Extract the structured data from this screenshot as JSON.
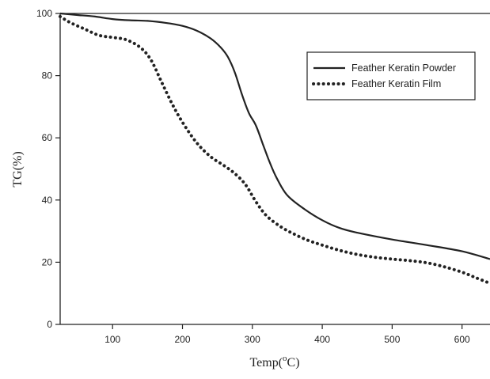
{
  "chart_data": {
    "type": "line",
    "xlabel": "Temp(oC)",
    "xlabel_parts": {
      "pre": "Temp(",
      "sup": "o",
      "post": "C)"
    },
    "ylabel": "TG(%)",
    "xlim": [
      25,
      640
    ],
    "ylim": [
      0,
      100
    ],
    "xticks": [
      100,
      200,
      300,
      400,
      500,
      600
    ],
    "yticks": [
      0,
      20,
      40,
      60,
      80,
      100
    ],
    "grid": false,
    "legend_position": "top-right",
    "series": [
      {
        "name": "Feather Keratin Powder",
        "style": "solid",
        "color": "#222222",
        "x": [
          25,
          50,
          75,
          100,
          125,
          150,
          175,
          200,
          220,
          240,
          255,
          265,
          275,
          285,
          295,
          305,
          315,
          325,
          335,
          350,
          375,
          400,
          425,
          450,
          500,
          550,
          600,
          640
        ],
        "y": [
          100,
          99.5,
          99,
          98.2,
          97.8,
          97.6,
          97,
          96,
          94.5,
          92,
          89,
          86,
          81,
          74,
          68,
          64,
          58,
          52,
          47,
          41.5,
          37,
          33.5,
          31,
          29.5,
          27.3,
          25.5,
          23.5,
          21
        ]
      },
      {
        "name": "Feather Keratin Film",
        "style": "dotted",
        "color": "#222222",
        "x": [
          25,
          40,
          60,
          80,
          100,
          120,
          140,
          155,
          170,
          185,
          200,
          220,
          240,
          260,
          275,
          290,
          305,
          320,
          340,
          360,
          380,
          400,
          425,
          450,
          475,
          500,
          525,
          550,
          575,
          600,
          620,
          640
        ],
        "y": [
          99,
          97,
          95,
          93,
          92.3,
          91.5,
          89,
          85,
          78,
          71,
          65,
          58.5,
          54,
          51,
          48.5,
          45,
          39.5,
          35,
          31.5,
          29,
          27,
          25.5,
          23.8,
          22.5,
          21.6,
          21,
          20.5,
          19.8,
          18.5,
          16.8,
          15,
          13.2
        ]
      }
    ]
  }
}
